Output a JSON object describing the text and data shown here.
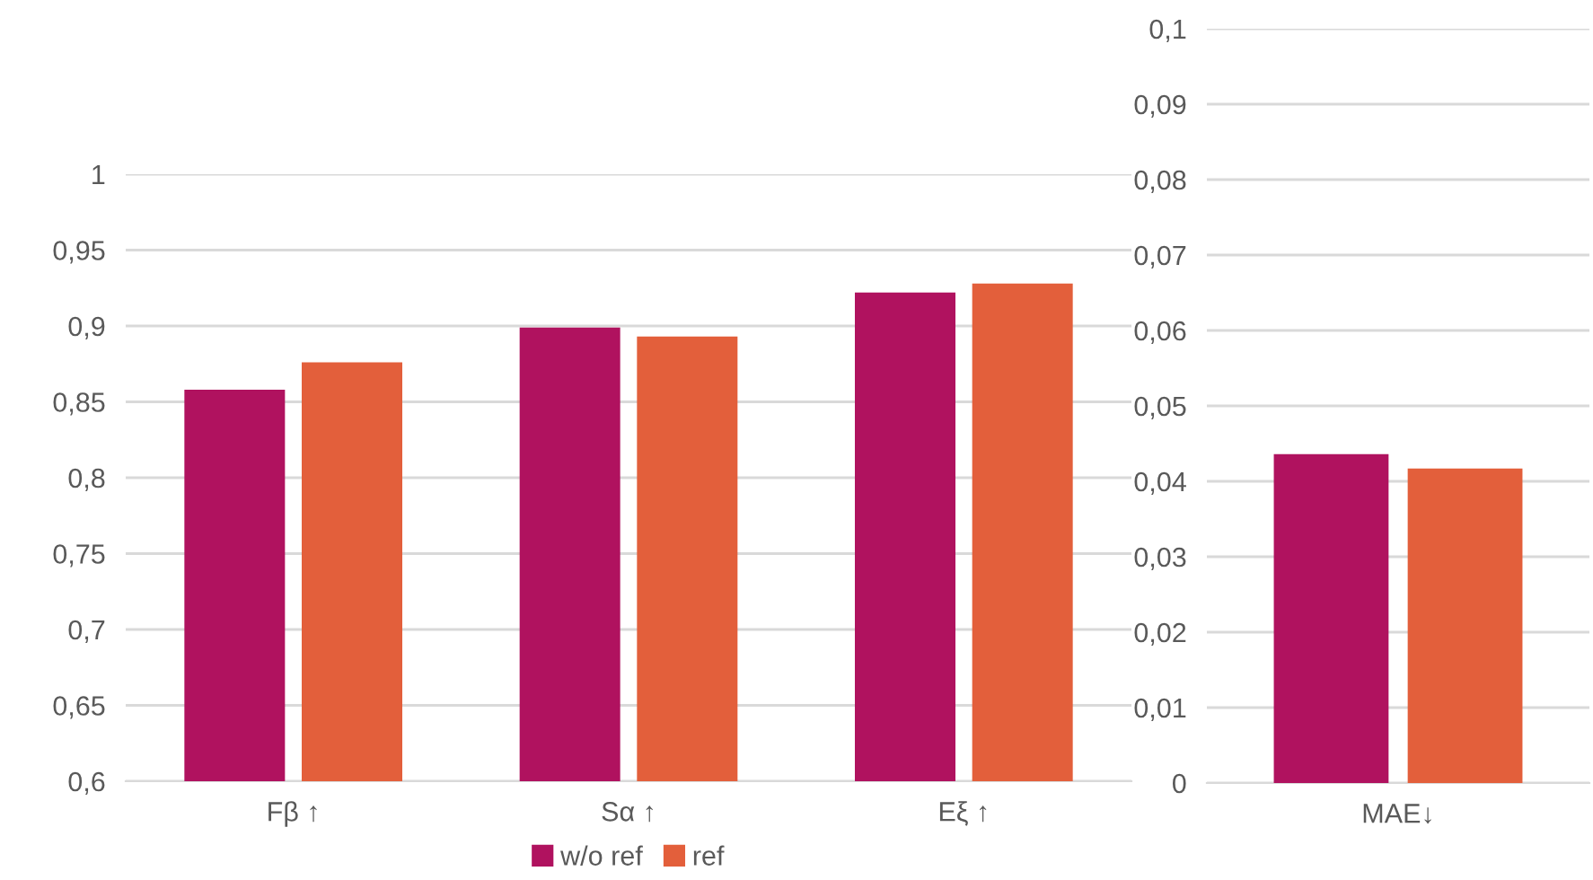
{
  "chart_data": [
    {
      "type": "bar",
      "categories": [
        "Fβ ↑",
        "Sα ↑",
        "Eξ ↑"
      ],
      "series": [
        {
          "name": "w/o ref",
          "color": "#b0125f",
          "values": [
            0.858,
            0.899,
            0.922
          ]
        },
        {
          "name": "ref",
          "color": "#e35f3b",
          "values": [
            0.876,
            0.893,
            0.928
          ]
        }
      ],
      "ylim": [
        0.6,
        1
      ],
      "yticks": [
        {
          "value": 0.6,
          "label": "0,6"
        },
        {
          "value": 0.65,
          "label": "0,65"
        },
        {
          "value": 0.7,
          "label": "0,7"
        },
        {
          "value": 0.75,
          "label": "0,75"
        },
        {
          "value": 0.8,
          "label": "0,8"
        },
        {
          "value": 0.85,
          "label": "0,85"
        },
        {
          "value": 0.9,
          "label": "0,9"
        },
        {
          "value": 0.95,
          "label": "0,95"
        },
        1
      ],
      "grid": "y",
      "legend": "bottom"
    },
    {
      "type": "bar",
      "categories": [
        "MAE↓"
      ],
      "series": [
        {
          "color": "#b0125f",
          "values": [
            0.0436
          ]
        },
        {
          "color": "#e35f3b",
          "values": [
            0.0417
          ]
        }
      ],
      "ylim": [
        0,
        0.1
      ],
      "yticks": [
        0,
        {
          "value": 0.01,
          "label": "0,01"
        },
        {
          "value": 0.02,
          "label": "0,02"
        },
        {
          "value": 0.03,
          "label": "0,03"
        },
        {
          "value": 0.04,
          "label": "0,04"
        },
        {
          "value": 0.05,
          "label": "0,05"
        },
        {
          "value": 0.06,
          "label": "0,06"
        },
        {
          "value": 0.07,
          "label": "0,07"
        },
        {
          "value": 0.08,
          "label": "0,08"
        },
        {
          "value": 0.09,
          "label": "0,09"
        },
        {
          "value": 0.1,
          "label": "0,1"
        }
      ],
      "grid": "y"
    }
  ]
}
